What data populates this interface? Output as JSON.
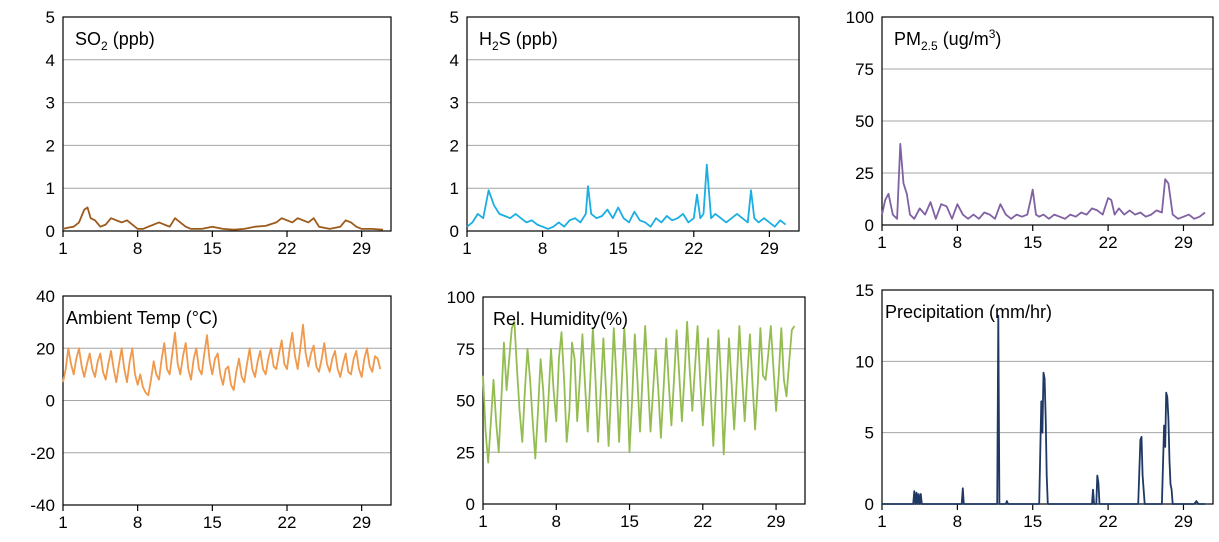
{
  "chart_data": [
    {
      "type": "line",
      "title": "SO",
      "title_sub": "2",
      "title_rest": " (ppb)",
      "color": "#9c5a1b",
      "ylim": [
        0,
        5
      ],
      "yticks": [
        "0",
        "1",
        "2",
        "3",
        "4",
        "5"
      ],
      "xlim": [
        1,
        31
      ],
      "xticks": [
        "1",
        "8",
        "15",
        "22",
        "29"
      ],
      "x": [
        1,
        1.5,
        2,
        2.5,
        3,
        3.3,
        3.6,
        4,
        4.5,
        5,
        5.5,
        6,
        6.5,
        7,
        7.5,
        8,
        8.5,
        9,
        9.5,
        10,
        10.5,
        11,
        11.5,
        12,
        12.5,
        13,
        14,
        15,
        16,
        17,
        18,
        19,
        20,
        21,
        21.5,
        22,
        22.5,
        23,
        23.5,
        24,
        24.5,
        25,
        26,
        27,
        27.5,
        28,
        28.5,
        29,
        30,
        31
      ],
      "y": [
        0.05,
        0.08,
        0.1,
        0.2,
        0.5,
        0.55,
        0.3,
        0.25,
        0.1,
        0.15,
        0.3,
        0.25,
        0.2,
        0.25,
        0.15,
        0.05,
        0.05,
        0.1,
        0.15,
        0.2,
        0.15,
        0.1,
        0.3,
        0.2,
        0.1,
        0.05,
        0.05,
        0.1,
        0.05,
        0.03,
        0.05,
        0.1,
        0.12,
        0.2,
        0.3,
        0.25,
        0.2,
        0.3,
        0.25,
        0.2,
        0.3,
        0.1,
        0.05,
        0.1,
        0.25,
        0.2,
        0.1,
        0.05,
        0.05,
        0.03
      ]
    },
    {
      "type": "line",
      "title": "H",
      "title_sub": "2",
      "title_rest": "S  (ppb)",
      "color": "#1aaee3",
      "ylim": [
        0,
        5
      ],
      "yticks": [
        "0",
        "1",
        "2",
        "3",
        "4",
        "5"
      ],
      "xlim": [
        1,
        31
      ],
      "xticks": [
        "1",
        "8",
        "15",
        "22",
        "29"
      ],
      "x": [
        1,
        1.5,
        2,
        2.5,
        3,
        3.5,
        4,
        4.5,
        5,
        5.5,
        6,
        6.5,
        7,
        7.5,
        8,
        8.5,
        9,
        9.5,
        10,
        10.5,
        11,
        11.5,
        12,
        12.2,
        12.5,
        13,
        13.5,
        14,
        14.5,
        15,
        15.5,
        16,
        16.5,
        17,
        17.5,
        18,
        18.5,
        19,
        19.5,
        20,
        20.5,
        21,
        21.5,
        22,
        22.3,
        22.6,
        22.9,
        23.2,
        23.6,
        24,
        24.5,
        25,
        25.5,
        26,
        26.5,
        27,
        27.3,
        27.6,
        28,
        28.5,
        29,
        29.5,
        30,
        30.5
      ],
      "y": [
        0.1,
        0.2,
        0.4,
        0.3,
        0.95,
        0.6,
        0.4,
        0.35,
        0.3,
        0.4,
        0.3,
        0.2,
        0.25,
        0.15,
        0.1,
        0.05,
        0.1,
        0.2,
        0.1,
        0.25,
        0.3,
        0.2,
        0.4,
        1.05,
        0.4,
        0.3,
        0.35,
        0.5,
        0.3,
        0.55,
        0.3,
        0.2,
        0.45,
        0.25,
        0.2,
        0.1,
        0.3,
        0.2,
        0.35,
        0.25,
        0.3,
        0.4,
        0.2,
        0.3,
        0.85,
        0.3,
        0.4,
        1.55,
        0.3,
        0.4,
        0.3,
        0.2,
        0.3,
        0.4,
        0.3,
        0.2,
        0.95,
        0.3,
        0.2,
        0.3,
        0.2,
        0.1,
        0.25,
        0.15
      ]
    },
    {
      "type": "line",
      "title": "PM",
      "title_sub": "2.5",
      "title_rest": " (ug/m",
      "title_sup": "3",
      "title_end": ")",
      "color": "#8061a2",
      "ylim": [
        0,
        100
      ],
      "yticks": [
        "0",
        "25",
        "50",
        "75",
        "100"
      ],
      "xlim": [
        1,
        31
      ],
      "xticks": [
        "1",
        "8",
        "15",
        "22",
        "29"
      ],
      "x": [
        1,
        1.3,
        1.6,
        2,
        2.4,
        2.7,
        3,
        3.3,
        3.6,
        4,
        4.5,
        5,
        5.5,
        6,
        6.5,
        7,
        7.5,
        8,
        8.5,
        9,
        9.5,
        10,
        10.5,
        11,
        11.5,
        12,
        12.5,
        13,
        13.5,
        14,
        14.5,
        14.8,
        15,
        15.3,
        15.6,
        16,
        16.5,
        17,
        17.5,
        18,
        18.5,
        19,
        19.5,
        20,
        20.5,
        21,
        21.5,
        22,
        22.3,
        22.6,
        23,
        23.5,
        24,
        24.5,
        25,
        25.5,
        26,
        26.5,
        27,
        27.3,
        27.6,
        28,
        28.5,
        29,
        29.5,
        30,
        30.5,
        31
      ],
      "y": [
        5,
        12,
        15,
        5,
        3,
        39,
        20,
        15,
        5,
        3,
        8,
        5,
        11,
        3,
        10,
        9,
        3,
        10,
        5,
        3,
        5,
        3,
        6,
        5,
        3,
        10,
        5,
        3,
        5,
        4,
        5,
        12,
        17,
        5,
        4,
        5,
        3,
        5,
        4,
        3,
        5,
        4,
        6,
        5,
        8,
        7,
        5,
        13,
        12,
        5,
        8,
        5,
        7,
        5,
        6,
        4,
        5,
        7,
        6,
        22,
        20,
        5,
        3,
        4,
        5,
        3,
        4,
        6
      ]
    },
    {
      "type": "line",
      "title": "Ambient Temp (°C)",
      "color": "#f0984b",
      "ylim": [
        -40,
        40
      ],
      "yticks": [
        "-40",
        "-20",
        "0",
        "20",
        "40"
      ],
      "xlim": [
        1,
        31
      ],
      "xticks": [
        "1",
        "8",
        "15",
        "22",
        "29"
      ],
      "x": [
        1,
        1.25,
        1.5,
        1.75,
        2,
        2.25,
        2.5,
        2.75,
        3,
        3.25,
        3.5,
        3.75,
        4,
        4.25,
        4.5,
        4.75,
        5,
        5.25,
        5.5,
        5.75,
        6,
        6.25,
        6.5,
        6.75,
        7,
        7.25,
        7.5,
        7.75,
        8,
        8.25,
        8.5,
        8.75,
        9,
        9.25,
        9.5,
        9.75,
        10,
        10.25,
        10.5,
        10.75,
        11,
        11.25,
        11.5,
        11.75,
        12,
        12.25,
        12.5,
        12.75,
        13,
        13.25,
        13.5,
        13.75,
        14,
        14.25,
        14.5,
        14.75,
        15,
        15.25,
        15.5,
        15.75,
        16,
        16.25,
        16.5,
        16.75,
        17,
        17.25,
        17.5,
        17.75,
        18,
        18.25,
        18.5,
        18.75,
        19,
        19.25,
        19.5,
        19.75,
        20,
        20.25,
        20.5,
        20.75,
        21,
        21.25,
        21.5,
        21.75,
        22,
        22.25,
        22.5,
        22.75,
        23,
        23.25,
        23.5,
        23.75,
        24,
        24.25,
        24.5,
        24.75,
        25,
        25.25,
        25.5,
        25.75,
        26,
        26.25,
        26.5,
        26.75,
        27,
        27.25,
        27.5,
        27.75,
        28,
        28.25,
        28.5,
        28.75,
        29,
        29.25,
        29.5,
        29.75,
        30,
        30.25,
        30.5,
        30.75
      ],
      "y": [
        7,
        12,
        20,
        14,
        10,
        16,
        20,
        13,
        9,
        14,
        18,
        12,
        9,
        15,
        18,
        11,
        8,
        14,
        19,
        12,
        7,
        14,
        20,
        12,
        7,
        15,
        20,
        10,
        6,
        10,
        5,
        3,
        2,
        8,
        15,
        10,
        8,
        16,
        22,
        12,
        10,
        18,
        26,
        14,
        10,
        17,
        22,
        12,
        8,
        16,
        20,
        12,
        10,
        18,
        25,
        15,
        10,
        16,
        18,
        10,
        6,
        12,
        13,
        6,
        4,
        11,
        16,
        9,
        7,
        14,
        20,
        12,
        9,
        15,
        19,
        12,
        10,
        16,
        20,
        13,
        12,
        18,
        23,
        14,
        12,
        20,
        26,
        17,
        12,
        20,
        29,
        18,
        13,
        18,
        21,
        13,
        11,
        16,
        22,
        14,
        11,
        16,
        19,
        12,
        9,
        14,
        18,
        11,
        10,
        16,
        19,
        12,
        9,
        16,
        20,
        13,
        11,
        17,
        16,
        12
      ]
    },
    {
      "type": "line",
      "title": "Rel. Humidity(%)",
      "color": "#94bd51",
      "ylim": [
        0,
        100
      ],
      "yticks": [
        "0",
        "25",
        "50",
        "75",
        "100"
      ],
      "xlim": [
        1,
        31
      ],
      "xticks": [
        "1",
        "8",
        "15",
        "22",
        "29"
      ],
      "x": [
        1,
        1.25,
        1.5,
        1.75,
        2,
        2.25,
        2.5,
        2.75,
        3,
        3.25,
        3.5,
        3.75,
        4,
        4.25,
        4.5,
        4.75,
        5,
        5.25,
        5.5,
        5.75,
        6,
        6.25,
        6.5,
        6.75,
        7,
        7.25,
        7.5,
        7.75,
        8,
        8.25,
        8.5,
        8.75,
        9,
        9.25,
        9.5,
        9.75,
        10,
        10.25,
        10.5,
        10.75,
        11,
        11.25,
        11.5,
        11.75,
        12,
        12.25,
        12.5,
        12.75,
        13,
        13.25,
        13.5,
        13.75,
        14,
        14.25,
        14.5,
        14.75,
        15,
        15.25,
        15.5,
        15.75,
        16,
        16.25,
        16.5,
        16.75,
        17,
        17.25,
        17.5,
        17.75,
        18,
        18.25,
        18.5,
        18.75,
        19,
        19.25,
        19.5,
        19.75,
        20,
        20.25,
        20.5,
        20.75,
        21,
        21.25,
        21.5,
        21.75,
        22,
        22.25,
        22.5,
        22.75,
        23,
        23.25,
        23.5,
        23.75,
        24,
        24.25,
        24.5,
        24.75,
        25,
        25.25,
        25.5,
        25.75,
        26,
        26.25,
        26.5,
        26.75,
        27,
        27.25,
        27.5,
        27.75,
        28,
        28.25,
        28.5,
        28.75,
        29,
        29.25,
        29.5,
        29.75,
        30,
        30.25,
        30.5,
        30.75
      ],
      "y": [
        62,
        35,
        20,
        40,
        60,
        40,
        25,
        50,
        78,
        55,
        70,
        85,
        88,
        65,
        45,
        30,
        55,
        75,
        60,
        40,
        22,
        45,
        70,
        55,
        30,
        50,
        75,
        55,
        40,
        70,
        83,
        60,
        30,
        45,
        78,
        70,
        40,
        60,
        82,
        58,
        35,
        60,
        85,
        60,
        30,
        55,
        80,
        55,
        28,
        55,
        85,
        60,
        30,
        58,
        85,
        62,
        25,
        50,
        82,
        60,
        35,
        62,
        86,
        60,
        35,
        55,
        75,
        55,
        32,
        55,
        80,
        58,
        38,
        60,
        84,
        62,
        40,
        62,
        88,
        65,
        45,
        66,
        86,
        60,
        38,
        58,
        80,
        55,
        28,
        55,
        84,
        60,
        24,
        52,
        80,
        58,
        36,
        60,
        86,
        62,
        40,
        62,
        82,
        58,
        36,
        58,
        85,
        62,
        60,
        72,
        86,
        65,
        45,
        62,
        85,
        60,
        52,
        68,
        84,
        86
      ]
    },
    {
      "type": "line",
      "title": "Precipitation (mm/hr)",
      "color": "#1f3864",
      "ylim": [
        0,
        15
      ],
      "yticks": [
        "0",
        "5",
        "10",
        "15"
      ],
      "xlim": [
        1,
        31
      ],
      "xticks": [
        "1",
        "8",
        "15",
        "22",
        "29"
      ],
      "x": [
        1,
        3.9,
        4.0,
        4.1,
        4.2,
        4.3,
        4.4,
        4.5,
        4.6,
        4.7,
        4.8,
        5,
        8,
        8.4,
        8.5,
        8.6,
        9,
        11.7,
        11.8,
        11.9,
        12.0,
        12.5,
        12.6,
        12.7,
        15.6,
        15.8,
        15.9,
        16.0,
        16.1,
        16.2,
        16.3,
        16.4,
        16.6,
        20.5,
        20.6,
        20.7,
        20.9,
        21.0,
        21.1,
        21.2,
        21.4,
        24.8,
        25.0,
        25.1,
        25.2,
        25.4,
        27.0,
        27.2,
        27.3,
        27.4,
        27.5,
        27.6,
        27.7,
        27.8,
        27.9,
        28.0,
        28.2,
        28.5,
        30,
        30.2,
        30.4,
        31
      ],
      "y": [
        0,
        0,
        0.9,
        0,
        0.8,
        0,
        0.7,
        0,
        0.7,
        0,
        0,
        0,
        0,
        0,
        1.1,
        0,
        0,
        0,
        13.2,
        0,
        0,
        0,
        0.2,
        0,
        0,
        7.2,
        5,
        9.2,
        8.8,
        6,
        2,
        0,
        0,
        0,
        1,
        0,
        0,
        2,
        1.5,
        0,
        0,
        0,
        4.5,
        4.7,
        2,
        0,
        0,
        5.5,
        4,
        7.8,
        7.5,
        6,
        3,
        1.4,
        1,
        0,
        0,
        0,
        0,
        0.2,
        0,
        0
      ]
    }
  ]
}
